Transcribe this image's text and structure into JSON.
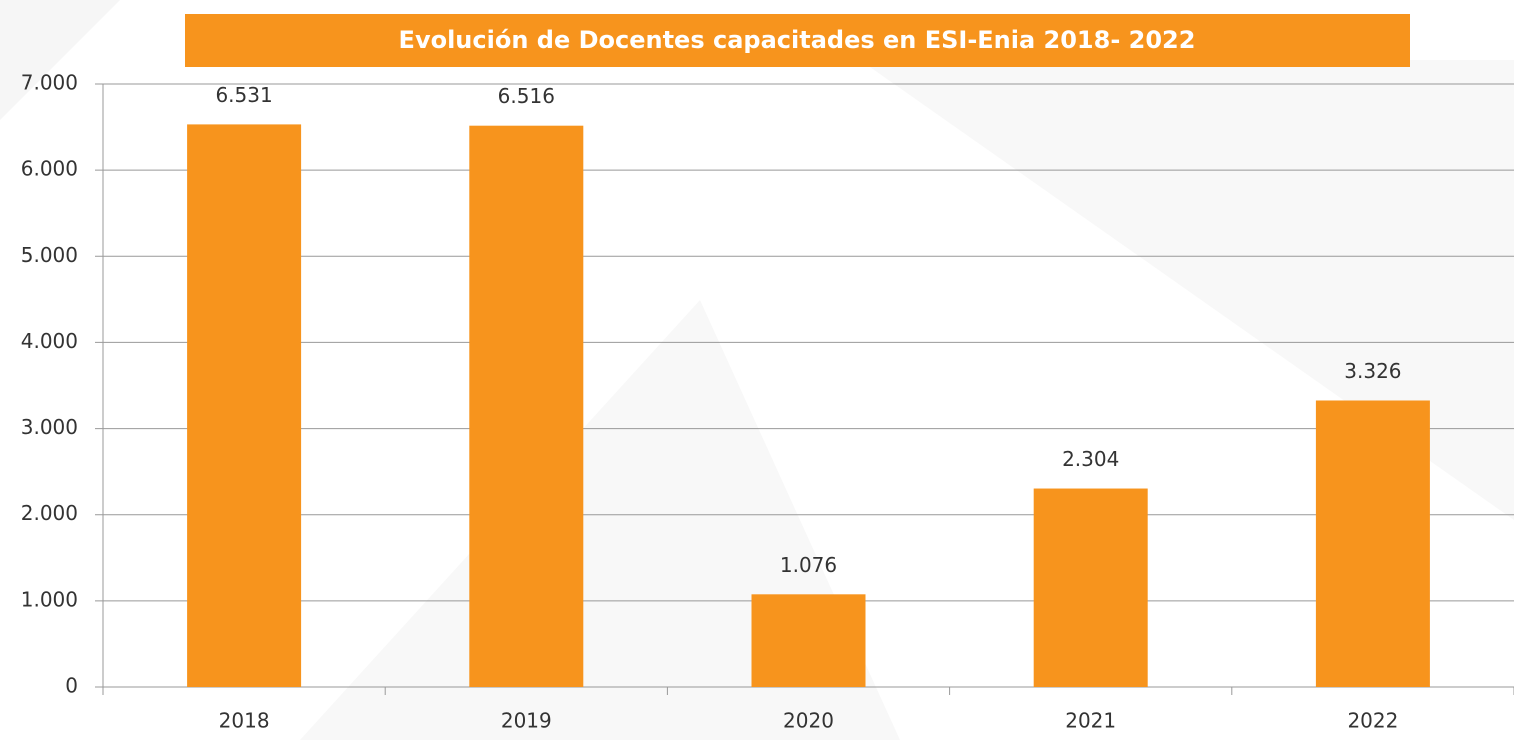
{
  "chart_data": {
    "type": "bar",
    "title": "Evolución de Docentes capacitades en ESI-Enia 2018- 2022",
    "categories": [
      "2018",
      "2019",
      "2020",
      "2021",
      "2022"
    ],
    "values": [
      6531,
      6516,
      1076,
      2304,
      3326
    ],
    "value_labels": [
      "6.531",
      "6.516",
      "1.076",
      "2.304",
      "3.326"
    ],
    "color": "#f7941d",
    "ylim": [
      0,
      7000
    ],
    "yticks": [
      0,
      {
        "value": 1000,
        "label": "1.000"
      },
      {
        "value": 2000,
        "label": "2.000"
      },
      {
        "value": 3000,
        "label": "3.000"
      },
      {
        "value": 4000,
        "label": "4.000"
      },
      {
        "value": 5000,
        "label": "5.000"
      },
      {
        "value": 6000,
        "label": "6.000"
      },
      {
        "value": 7000,
        "label": "7.000"
      }
    ],
    "grid": true
  }
}
